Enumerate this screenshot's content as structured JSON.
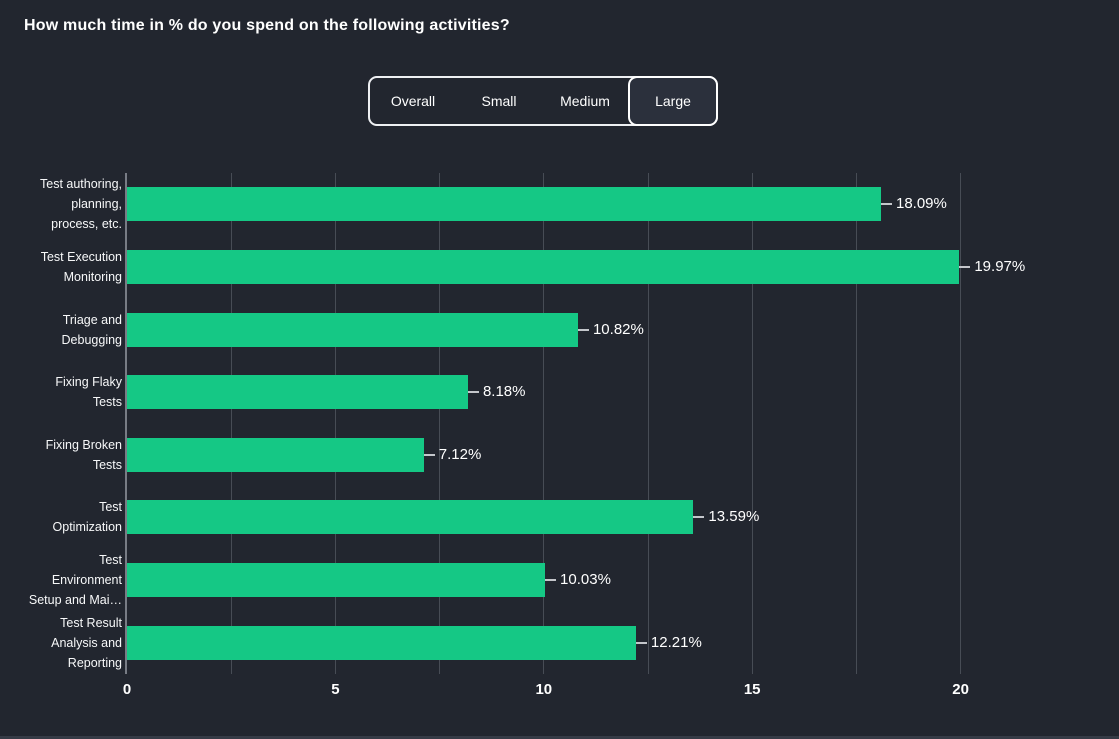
{
  "page": {
    "title": "How much time in % do you spend on the following activities?",
    "background_color": "#22262f"
  },
  "filter_tabs": {
    "options": [
      {
        "label": "Overall",
        "selected": false
      },
      {
        "label": "Small",
        "selected": false
      },
      {
        "label": "Medium",
        "selected": false
      },
      {
        "label": "Large",
        "selected": true
      }
    ]
  },
  "chart_data": {
    "type": "bar",
    "orientation": "horizontal",
    "title": "How much time in % do you spend on the following activities?",
    "categories": [
      "Test authoring, planning, process, etc.",
      "Test Execution Monitoring",
      "Triage and Debugging",
      "Fixing Flaky Tests",
      "Fixing Broken Tests",
      "Test Optimization",
      "Test Environment Setup and Mai…",
      "Test Result Analysis and Reporting"
    ],
    "category_lines": [
      [
        "Test authoring,",
        "planning,",
        "process, etc."
      ],
      [
        "Test Execution",
        "Monitoring"
      ],
      [
        "Triage and",
        "Debugging"
      ],
      [
        "Fixing Flaky",
        "Tests"
      ],
      [
        "Fixing Broken",
        "Tests"
      ],
      [
        "Test",
        "Optimization"
      ],
      [
        "Test",
        "Environment",
        "Setup and Mai…"
      ],
      [
        "Test Result",
        "Analysis and",
        "Reporting"
      ]
    ],
    "values": [
      18.09,
      19.97,
      10.82,
      8.18,
      7.12,
      13.59,
      10.03,
      12.21
    ],
    "value_labels": [
      "18.09%",
      "19.97%",
      "10.82%",
      "8.18%",
      "7.12%",
      "13.59%",
      "10.03%",
      "12.21%"
    ],
    "xlabel": "",
    "ylabel": "",
    "xlim": [
      0,
      20
    ],
    "x_ticks": [
      0,
      5,
      10,
      15,
      20
    ],
    "x_gridline_step": 2.5,
    "grid": true,
    "legend": false,
    "bar_color": "#15c885",
    "grid_color": "#474c55",
    "axis_color": "#787c85",
    "text_color": "#ffffff"
  }
}
